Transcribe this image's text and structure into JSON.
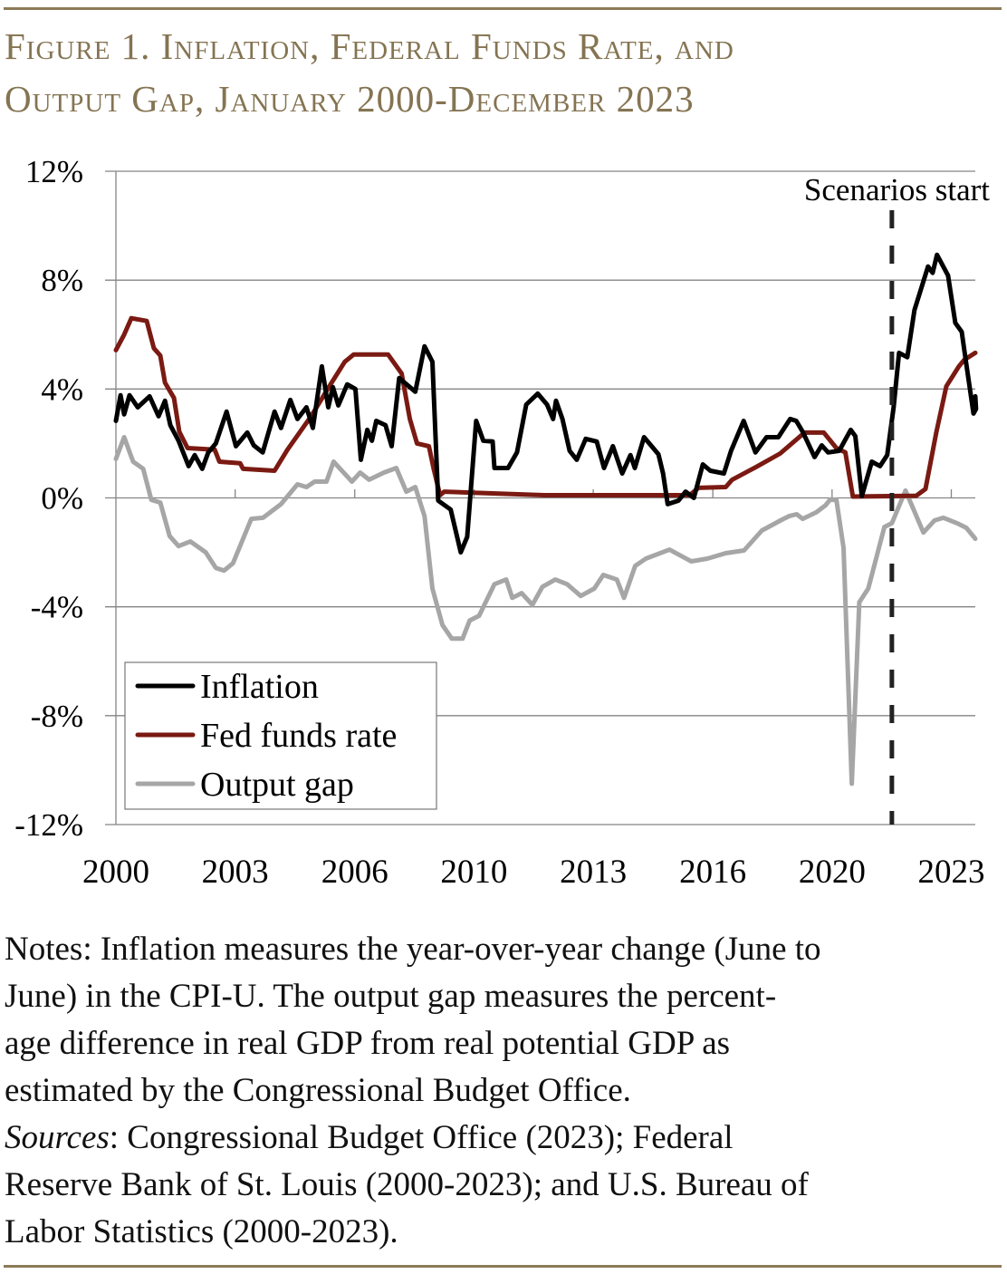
{
  "title": {
    "lines": [
      "Figure 1. Inflation, Federal Funds Rate, and",
      "Output Gap, January 2000-December 2023"
    ],
    "color": "#857452"
  },
  "chart_data": {
    "type": "line",
    "xlim": [
      2000,
      2024
    ],
    "ylim": [
      -12,
      12
    ],
    "grid": true,
    "legend_position": "bottom-left",
    "y_ticks": [
      {
        "value": 12,
        "label": "12%"
      },
      {
        "value": 8,
        "label": "8%"
      },
      {
        "value": 4,
        "label": "4%"
      },
      {
        "value": 0,
        "label": "0%"
      },
      {
        "value": -4,
        "label": "-4%"
      },
      {
        "value": -8,
        "label": "-8%"
      },
      {
        "value": -12,
        "label": "-12%"
      }
    ],
    "x_ticks": [
      {
        "value": 2000,
        "label": "2000"
      },
      {
        "value": 2003.33,
        "label": "2003"
      },
      {
        "value": 2006.67,
        "label": "2006"
      },
      {
        "value": 2010,
        "label": "2010"
      },
      {
        "value": 2013.33,
        "label": "2013"
      },
      {
        "value": 2016.67,
        "label": "2016"
      },
      {
        "value": 2020,
        "label": "2020"
      },
      {
        "value": 2023.33,
        "label": "2023"
      }
    ],
    "annotation": {
      "label": "Scenarios start",
      "x": 2021.67
    },
    "series": [
      {
        "name": "Inflation",
        "color": "#000000",
        "points": [
          [
            2000.0,
            2.83
          ],
          [
            2000.13,
            3.77
          ],
          [
            2000.23,
            3.07
          ],
          [
            2000.38,
            3.77
          ],
          [
            2000.61,
            3.33
          ],
          [
            2000.94,
            3.73
          ],
          [
            2001.19,
            3.0
          ],
          [
            2001.37,
            3.57
          ],
          [
            2001.52,
            2.67
          ],
          [
            2001.75,
            2.1
          ],
          [
            2002.03,
            1.17
          ],
          [
            2002.2,
            1.57
          ],
          [
            2002.41,
            1.07
          ],
          [
            2002.58,
            1.67
          ],
          [
            2002.79,
            2.0
          ],
          [
            2003.09,
            3.17
          ],
          [
            2003.35,
            1.9
          ],
          [
            2003.67,
            2.4
          ],
          [
            2003.85,
            1.93
          ],
          [
            2004.1,
            1.67
          ],
          [
            2004.43,
            3.17
          ],
          [
            2004.61,
            2.57
          ],
          [
            2004.87,
            3.6
          ],
          [
            2005.07,
            2.9
          ],
          [
            2005.32,
            3.33
          ],
          [
            2005.5,
            2.57
          ],
          [
            2005.75,
            4.83
          ],
          [
            2005.93,
            3.33
          ],
          [
            2006.06,
            4.07
          ],
          [
            2006.21,
            3.4
          ],
          [
            2006.46,
            4.17
          ],
          [
            2006.69,
            4.0
          ],
          [
            2006.84,
            1.4
          ],
          [
            2007.02,
            2.5
          ],
          [
            2007.15,
            2.1
          ],
          [
            2007.27,
            2.83
          ],
          [
            2007.53,
            2.67
          ],
          [
            2007.7,
            1.9
          ],
          [
            2007.91,
            4.4
          ],
          [
            2008.36,
            3.9
          ],
          [
            2008.62,
            5.57
          ],
          [
            2008.84,
            5.0
          ],
          [
            2009.0,
            -0.1
          ],
          [
            2009.35,
            -0.43
          ],
          [
            2009.63,
            -2.0
          ],
          [
            2009.81,
            -1.43
          ],
          [
            2010.06,
            2.83
          ],
          [
            2010.26,
            2.1
          ],
          [
            2010.52,
            2.07
          ],
          [
            2010.57,
            1.1
          ],
          [
            2010.95,
            1.1
          ],
          [
            2011.2,
            1.67
          ],
          [
            2011.46,
            3.43
          ],
          [
            2011.78,
            3.83
          ],
          [
            2012.04,
            3.43
          ],
          [
            2012.21,
            2.9
          ],
          [
            2012.29,
            3.57
          ],
          [
            2012.47,
            2.9
          ],
          [
            2012.67,
            1.73
          ],
          [
            2012.87,
            1.4
          ],
          [
            2013.12,
            2.17
          ],
          [
            2013.43,
            2.07
          ],
          [
            2013.63,
            1.1
          ],
          [
            2013.88,
            1.9
          ],
          [
            2014.14,
            0.9
          ],
          [
            2014.37,
            1.57
          ],
          [
            2014.49,
            1.1
          ],
          [
            2014.75,
            2.23
          ],
          [
            2015.15,
            1.6
          ],
          [
            2015.28,
            0.9
          ],
          [
            2015.41,
            -0.23
          ],
          [
            2015.71,
            -0.1
          ],
          [
            2015.91,
            0.23
          ],
          [
            2016.14,
            0.0
          ],
          [
            2016.39,
            1.23
          ],
          [
            2016.6,
            1.0
          ],
          [
            2016.98,
            0.9
          ],
          [
            2017.18,
            1.73
          ],
          [
            2017.53,
            2.83
          ],
          [
            2017.86,
            1.67
          ],
          [
            2018.17,
            2.23
          ],
          [
            2018.5,
            2.23
          ],
          [
            2018.83,
            2.9
          ],
          [
            2019.0,
            2.83
          ],
          [
            2019.18,
            2.43
          ],
          [
            2019.51,
            1.5
          ],
          [
            2019.71,
            1.93
          ],
          [
            2019.89,
            1.67
          ],
          [
            2020.2,
            1.73
          ],
          [
            2020.52,
            2.5
          ],
          [
            2020.65,
            2.27
          ],
          [
            2020.83,
            0.07
          ],
          [
            2021.11,
            1.33
          ],
          [
            2021.34,
            1.17
          ],
          [
            2021.54,
            1.57
          ],
          [
            2021.72,
            3.33
          ],
          [
            2021.87,
            5.33
          ],
          [
            2022.1,
            5.17
          ],
          [
            2022.3,
            6.9
          ],
          [
            2022.68,
            8.5
          ],
          [
            2022.81,
            8.27
          ],
          [
            2022.93,
            8.93
          ],
          [
            2023.24,
            8.17
          ],
          [
            2023.44,
            6.43
          ],
          [
            2023.62,
            6.1
          ],
          [
            2023.74,
            5.0
          ],
          [
            2023.95,
            3.1
          ],
          [
            2024.02,
            3.27
          ],
          [
            2024.0,
            3.73
          ]
        ]
      },
      {
        "name": "Fed funds rate",
        "color": "#7a1a12",
        "points": [
          [
            2000.0,
            5.43
          ],
          [
            2000.23,
            6.0
          ],
          [
            2000.43,
            6.6
          ],
          [
            2000.86,
            6.5
          ],
          [
            2001.06,
            5.5
          ],
          [
            2001.24,
            5.23
          ],
          [
            2001.37,
            4.23
          ],
          [
            2001.62,
            3.67
          ],
          [
            2001.77,
            2.43
          ],
          [
            2002.0,
            1.83
          ],
          [
            2002.76,
            1.77
          ],
          [
            2002.89,
            1.33
          ],
          [
            2003.47,
            1.27
          ],
          [
            2003.55,
            1.07
          ],
          [
            2004.43,
            1.0
          ],
          [
            2004.79,
            1.77
          ],
          [
            2005.45,
            3.0
          ],
          [
            2005.96,
            4.1
          ],
          [
            2006.39,
            5.0
          ],
          [
            2006.64,
            5.27
          ],
          [
            2007.6,
            5.27
          ],
          [
            2007.98,
            4.57
          ],
          [
            2008.21,
            2.9
          ],
          [
            2008.41,
            2.0
          ],
          [
            2008.74,
            1.9
          ],
          [
            2008.87,
            1.1
          ],
          [
            2009.05,
            0.1
          ],
          [
            2009.17,
            0.23
          ],
          [
            2011.96,
            0.1
          ],
          [
            2016.02,
            0.1
          ],
          [
            2016.27,
            0.37
          ],
          [
            2017.03,
            0.4
          ],
          [
            2017.21,
            0.67
          ],
          [
            2017.87,
            1.13
          ],
          [
            2018.55,
            1.63
          ],
          [
            2019.23,
            2.4
          ],
          [
            2019.77,
            2.4
          ],
          [
            2020.12,
            1.83
          ],
          [
            2020.37,
            1.67
          ],
          [
            2020.58,
            0.05
          ],
          [
            2022.35,
            0.08
          ],
          [
            2022.61,
            0.33
          ],
          [
            2022.91,
            2.4
          ],
          [
            2023.19,
            4.1
          ],
          [
            2023.54,
            4.83
          ],
          [
            2023.69,
            5.07
          ],
          [
            2024.0,
            5.33
          ]
        ]
      },
      {
        "name": "Output gap",
        "color": "#a6a6a6",
        "points": [
          [
            2000.0,
            1.43
          ],
          [
            2000.23,
            2.23
          ],
          [
            2000.48,
            1.33
          ],
          [
            2000.76,
            1.07
          ],
          [
            2000.99,
            -0.07
          ],
          [
            2001.24,
            -0.17
          ],
          [
            2001.5,
            -1.4
          ],
          [
            2001.75,
            -1.77
          ],
          [
            2002.08,
            -1.6
          ],
          [
            2002.51,
            -2.0
          ],
          [
            2002.79,
            -2.57
          ],
          [
            2003.02,
            -2.67
          ],
          [
            2003.27,
            -2.4
          ],
          [
            2003.78,
            -0.77
          ],
          [
            2004.11,
            -0.73
          ],
          [
            2004.61,
            -0.23
          ],
          [
            2005.07,
            0.5
          ],
          [
            2005.32,
            0.4
          ],
          [
            2005.55,
            0.6
          ],
          [
            2005.88,
            0.6
          ],
          [
            2006.08,
            1.33
          ],
          [
            2006.59,
            0.6
          ],
          [
            2006.82,
            0.93
          ],
          [
            2007.07,
            0.67
          ],
          [
            2007.48,
            0.93
          ],
          [
            2007.83,
            1.1
          ],
          [
            2008.11,
            0.23
          ],
          [
            2008.36,
            0.4
          ],
          [
            2008.62,
            -0.67
          ],
          [
            2008.84,
            -3.33
          ],
          [
            2009.12,
            -4.67
          ],
          [
            2009.38,
            -5.17
          ],
          [
            2009.68,
            -5.17
          ],
          [
            2009.88,
            -4.5
          ],
          [
            2010.14,
            -4.33
          ],
          [
            2010.57,
            -3.17
          ],
          [
            2010.9,
            -3.0
          ],
          [
            2011.07,
            -3.67
          ],
          [
            2011.33,
            -3.5
          ],
          [
            2011.63,
            -3.93
          ],
          [
            2011.91,
            -3.27
          ],
          [
            2012.27,
            -3.0
          ],
          [
            2012.6,
            -3.17
          ],
          [
            2012.98,
            -3.6
          ],
          [
            2013.36,
            -3.33
          ],
          [
            2013.61,
            -2.83
          ],
          [
            2013.99,
            -3.0
          ],
          [
            2014.19,
            -3.67
          ],
          [
            2014.5,
            -2.5
          ],
          [
            2014.8,
            -2.23
          ],
          [
            2015.46,
            -1.9
          ],
          [
            2016.07,
            -2.33
          ],
          [
            2016.52,
            -2.23
          ],
          [
            2017.03,
            -2.03
          ],
          [
            2017.54,
            -1.93
          ],
          [
            2018.04,
            -1.2
          ],
          [
            2018.6,
            -0.8
          ],
          [
            2018.8,
            -0.67
          ],
          [
            2019.01,
            -0.6
          ],
          [
            2019.18,
            -0.77
          ],
          [
            2019.56,
            -0.53
          ],
          [
            2019.82,
            -0.27
          ],
          [
            2019.94,
            -0.07
          ],
          [
            2020.12,
            -0.07
          ],
          [
            2020.32,
            -1.83
          ],
          [
            2020.55,
            -10.5
          ],
          [
            2020.76,
            -3.83
          ],
          [
            2021.01,
            -3.33
          ],
          [
            2021.46,
            -1.07
          ],
          [
            2021.67,
            -0.93
          ],
          [
            2022.05,
            0.27
          ],
          [
            2022.55,
            -1.27
          ],
          [
            2022.86,
            -0.83
          ],
          [
            2023.11,
            -0.73
          ],
          [
            2023.49,
            -0.93
          ],
          [
            2023.75,
            -1.1
          ],
          [
            2024.0,
            -1.5
          ]
        ]
      }
    ]
  },
  "notes": {
    "lines": [
      "Notes: Inflation measures the year-over-year change (June to",
      "June) in the CPI-U.  The output gap measures the percent-",
      "age difference in real GDP from real potential GDP as",
      "estimated by the Congressional Budget Office."
    ],
    "sources_label": "Sources",
    "sources_lines": [
      ": Congressional Budget Office (2023); Federal",
      "Reserve Bank of St. Louis (2000-2023); and U.S. Bureau of",
      "Labor Statistics (2000-2023)."
    ]
  }
}
